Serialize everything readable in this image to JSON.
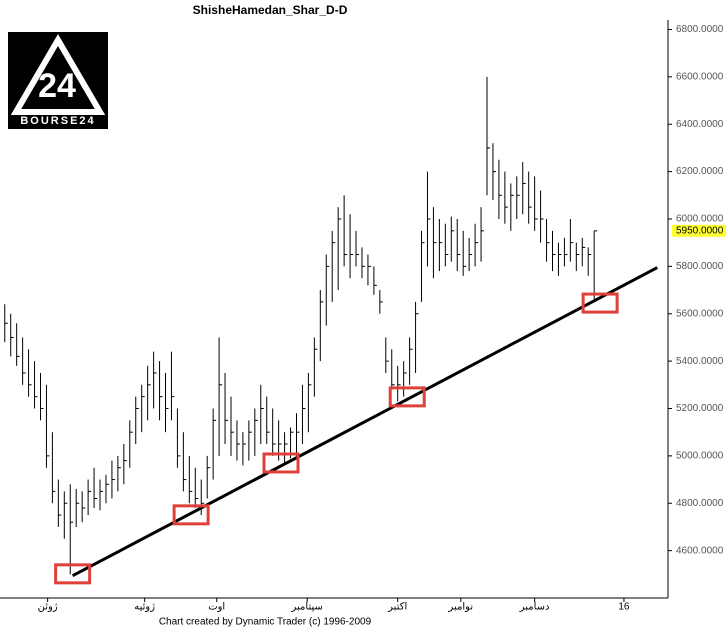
{
  "chart_data": {
    "type": "hlc",
    "title": "ShisheHamedan_Shar_D-D",
    "footer": "Chart created by Dynamic Trader  (c) 1996-2009",
    "logo": {
      "mark": "24",
      "name": "BOURSE24"
    },
    "color": "#000000",
    "ylim": [
      4400,
      6840
    ],
    "xlim": [
      -0.8,
      111.4
    ],
    "yticks": [
      {
        "value": 4600,
        "label": "4600.0000"
      },
      {
        "value": 4800,
        "label": "4800.0000"
      },
      {
        "value": 5000,
        "label": "5000.0000"
      },
      {
        "value": 5200,
        "label": "5200.0000"
      },
      {
        "value": 5400,
        "label": "5400.0000"
      },
      {
        "value": 5600,
        "label": "5600.0000"
      },
      {
        "value": 5800,
        "label": "5800.0000"
      },
      {
        "value": 6000,
        "label": "6000.0000"
      },
      {
        "value": 6200,
        "label": "6200.0000"
      },
      {
        "value": 6400,
        "label": "6400.0000"
      },
      {
        "value": 6600,
        "label": "6600.0000"
      },
      {
        "value": 6800,
        "label": "6800.0000"
      }
    ],
    "xticks": [
      {
        "value": 7.2,
        "label": "ژوئن"
      },
      {
        "value": 23.5,
        "label": "ژوئیه"
      },
      {
        "value": 35.6,
        "label": "اوت"
      },
      {
        "value": 50.8,
        "label": "سپتامبر"
      },
      {
        "value": 66,
        "label": "اکتبر"
      },
      {
        "value": 76.6,
        "label": "نوامبر"
      },
      {
        "value": 89,
        "label": "دسامبر"
      },
      {
        "value": 104,
        "label": "16"
      }
    ],
    "last_price": {
      "value": 5950,
      "label": "5950.0000"
    },
    "high": [
      5640,
      5600,
      5560,
      5500,
      5450,
      5400,
      5350,
      5300,
      5100,
      4900,
      4850,
      4880,
      4860,
      4850,
      4900,
      4950,
      4900,
      4920,
      4980,
      5000,
      5050,
      5150,
      5250,
      5300,
      5380,
      5440,
      5400,
      5350,
      5440,
      5200,
      5100,
      5000,
      4950,
      4900,
      5000,
      5200,
      5500,
      5350,
      5250,
      5150,
      5100,
      5150,
      5200,
      5300,
      5250,
      5200,
      5150,
      5100,
      5120,
      5180,
      5300,
      5350,
      5500,
      5700,
      5850,
      5950,
      6050,
      6100,
      6020,
      5950,
      5880,
      5850,
      5800,
      5700,
      5500,
      5450,
      5380,
      5400,
      5500,
      5650,
      5950,
      6200,
      6050,
      6000,
      5980,
      6010,
      6000,
      5950,
      5920,
      5980,
      6050,
      6600,
      6320,
      6250,
      6200,
      6150,
      6180,
      6240,
      6200,
      6180,
      6120,
      6000,
      5950,
      5900,
      5920,
      6000,
      5900,
      5920,
      5880,
      5950
    ],
    "low": [
      5480,
      5420,
      5380,
      5300,
      5250,
      5200,
      5150,
      4950,
      4800,
      4700,
      4650,
      4500,
      4700,
      4720,
      4750,
      4780,
      4770,
      4800,
      4820,
      4850,
      4880,
      4950,
      5050,
      5100,
      5150,
      5200,
      5150,
      5100,
      5150,
      4950,
      4850,
      4800,
      4780,
      4750,
      4820,
      4900,
      5000,
      5050,
      5000,
      4980,
      4960,
      4980,
      5000,
      5050,
      5050,
      5000,
      4980,
      4970,
      4990,
      5000,
      5050,
      5100,
      5250,
      5400,
      5550,
      5650,
      5700,
      5800,
      5750,
      5800,
      5750,
      5720,
      5680,
      5600,
      5350,
      5280,
      5230,
      5250,
      5300,
      5350,
      5650,
      5800,
      5750,
      5780,
      5800,
      5820,
      5780,
      5760,
      5780,
      5800,
      5820,
      6100,
      6080,
      6000,
      5980,
      5950,
      6000,
      6020,
      5980,
      5950,
      5900,
      5820,
      5780,
      5760,
      5800,
      5820,
      5780,
      5800,
      5760,
      5650
    ],
    "close": [
      5560,
      5500,
      5420,
      5350,
      5300,
      5250,
      5200,
      5000,
      4850,
      4750,
      4800,
      4720,
      4800,
      4780,
      4850,
      4820,
      4850,
      4880,
      4900,
      4950,
      4980,
      5100,
      5200,
      5250,
      5300,
      5350,
      5250,
      5200,
      5250,
      5000,
      4900,
      4850,
      4820,
      4800,
      4950,
      5150,
      5300,
      5150,
      5100,
      5050,
      5050,
      5100,
      5150,
      5200,
      5100,
      5050,
      5050,
      5050,
      5100,
      5100,
      5200,
      5300,
      5450,
      5650,
      5800,
      5900,
      6000,
      5850,
      5850,
      5850,
      5800,
      5800,
      5720,
      5650,
      5400,
      5300,
      5300,
      5350,
      5450,
      5600,
      5900,
      6000,
      5900,
      5900,
      5850,
      5950,
      5850,
      5800,
      5850,
      5900,
      5950,
      6300,
      6200,
      6100,
      6050,
      6100,
      6100,
      6150,
      6050,
      6000,
      6000,
      5900,
      5850,
      5850,
      5850,
      5900,
      5850,
      5880,
      5850,
      5950
    ],
    "trendline": {
      "x": [
        11.4,
        109.6
      ],
      "values": [
        4494,
        5795
      ],
      "color": "#000000"
    },
    "highlights": {
      "x": [
        11.4,
        31.3,
        46.4,
        67.6,
        100
      ],
      "values": [
        4502,
        4751,
        4970,
        5249,
        5645
      ],
      "color": "#e0403a"
    }
  }
}
